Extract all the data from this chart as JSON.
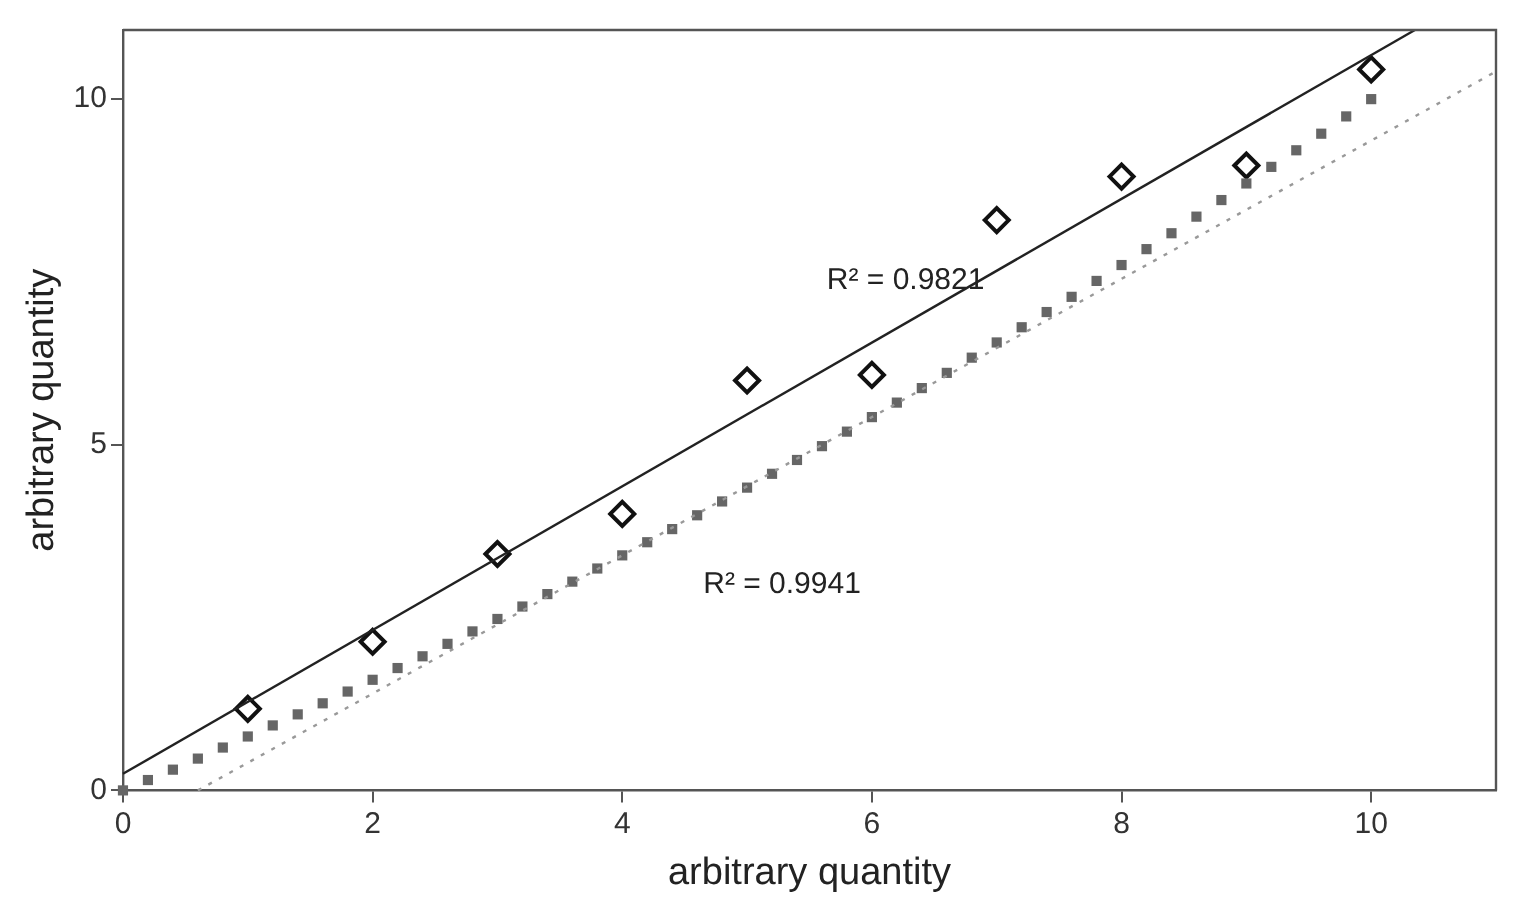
{
  "chart_data": {
    "type": "scatter",
    "xlabel": "arbitrary quantity",
    "ylabel": "arbitrary quantity",
    "xlim": [
      0,
      11
    ],
    "ylim": [
      0,
      11
    ],
    "xticks": [
      0,
      2,
      4,
      6,
      8,
      10
    ],
    "yticks": [
      0,
      5,
      10
    ],
    "grid": false,
    "legend": false,
    "annotations": [
      "R² = 0.9821",
      "R² = 0.9941"
    ],
    "series": [
      {
        "type": "line",
        "color": "#222222",
        "marker": "none",
        "line_style": "solid",
        "x": [
          0,
          10.35
        ],
        "values": [
          0.24,
          11
        ]
      },
      {
        "type": "line",
        "color": "#999999",
        "marker": "none",
        "line_style": "dotted",
        "x": [
          0.6,
          11
        ],
        "values": [
          0,
          10.4
        ]
      },
      {
        "color": "#666666",
        "marker": "square",
        "x": [
          0,
          0.2,
          0.4,
          0.6,
          0.8,
          1,
          1.2,
          1.4,
          1.6,
          1.8,
          2,
          2.2,
          2.4,
          2.6,
          2.8,
          3,
          3.2,
          3.4,
          3.6,
          3.8,
          4,
          4.2,
          4.4,
          4.6,
          4.8,
          5,
          5.2,
          5.4,
          5.6,
          5.8,
          6,
          6.2,
          6.4,
          6.6,
          6.8,
          7,
          7.2,
          7.4,
          7.6,
          7.8,
          8,
          8.2,
          8.4,
          8.6,
          8.8,
          9,
          9.2,
          9.4,
          9.6,
          9.8,
          10
        ],
        "values": [
          0,
          0.15,
          0.3,
          0.46,
          0.62,
          0.78,
          0.94,
          1.1,
          1.26,
          1.43,
          1.6,
          1.77,
          1.94,
          2.12,
          2.3,
          2.48,
          2.66,
          2.84,
          3.02,
          3.21,
          3.4,
          3.59,
          3.78,
          3.98,
          4.18,
          4.38,
          4.58,
          4.78,
          4.98,
          5.19,
          5.4,
          5.61,
          5.82,
          6.04,
          6.26,
          6.48,
          6.7,
          6.92,
          7.14,
          7.37,
          7.6,
          7.83,
          8.06,
          8.3,
          8.54,
          8.78,
          9.02,
          9.26,
          9.5,
          9.75,
          10
        ]
      },
      {
        "color": "#111111",
        "marker": "diamond",
        "x": [
          1,
          2,
          3,
          4,
          5,
          6,
          7,
          8,
          9,
          10
        ],
        "values": [
          1.18,
          2.15,
          3.42,
          4.0,
          5.93,
          6.01,
          8.25,
          8.88,
          9.04,
          10.43
        ]
      }
    ]
  }
}
